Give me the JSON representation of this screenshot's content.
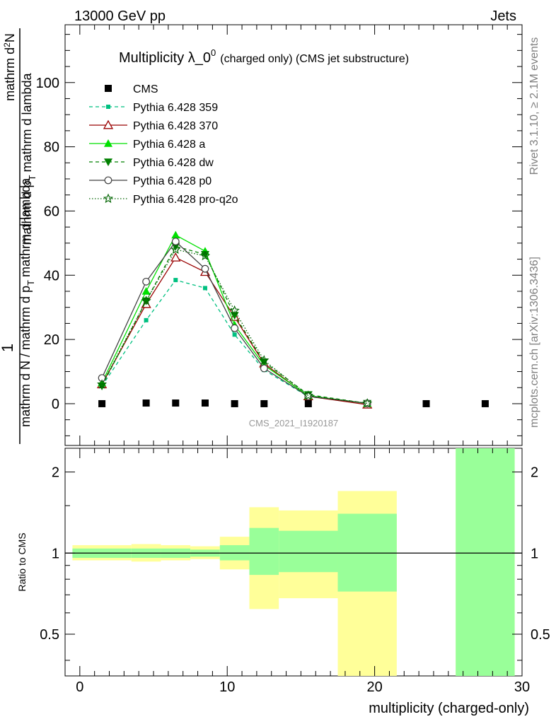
{
  "header": {
    "left": "13000 GeV pp",
    "right": "Jets"
  },
  "side_labels": {
    "rivet": "Rivet 3.1.10, ≥ 2.1M events",
    "mcplots": "mcplots.cern.ch [arXiv:1306.3436]"
  },
  "chart_data": [
    {
      "type": "line",
      "title_main": "Multiplicity λ_0",
      "title_sup": "0",
      "title_rest": "(charged only) (CMS jet substructure)",
      "analysis_label": "CMS_2021_I1920187",
      "ylabel": {
        "numer_1": "1",
        "denom_1": "mathrm d N / mathrm d p",
        "denom_sub": "T",
        "denom_2": "mathrm d lambda",
        "numer_2a": "mathrm d",
        "numer_2sup": "2",
        "numer_2b": "N",
        "denom2_a": "mathrm d p",
        "denom2_sub": "T",
        "denom2_b": "mathrm d lambda"
      },
      "xlim": [
        -1,
        30
      ],
      "ylim": [
        -13,
        118
      ],
      "x_ticks": [
        0,
        10,
        20,
        30
      ],
      "y_ticks": [
        0,
        20,
        40,
        60,
        80,
        100
      ],
      "legend_position": "top-left",
      "series": [
        {
          "name": "CMS",
          "color": "#000000",
          "marker": "square",
          "line": "none",
          "points": [
            [
              1.5,
              0
            ],
            [
              4.5,
              0.2
            ],
            [
              6.5,
              0.2
            ],
            [
              8.5,
              0.2
            ],
            [
              10.5,
              0
            ],
            [
              12.5,
              0
            ],
            [
              15.5,
              0
            ],
            [
              19.5,
              0
            ],
            [
              23.5,
              0
            ],
            [
              27.5,
              0
            ]
          ]
        },
        {
          "name": "Pythia 6.428 359",
          "color": "#00c080",
          "marker": "square-small",
          "line": "dashed",
          "points": [
            [
              1.5,
              5.5
            ],
            [
              4.5,
              26
            ],
            [
              6.5,
              38.5
            ],
            [
              8.5,
              36
            ],
            [
              10.5,
              21.5
            ],
            [
              12.5,
              10.5
            ],
            [
              15.5,
              2.2
            ],
            [
              19.5,
              0.1
            ]
          ]
        },
        {
          "name": "Pythia 6.428 370",
          "color": "#990000",
          "marker": "triangle-open",
          "line": "solid",
          "points": [
            [
              1.5,
              6
            ],
            [
              4.5,
              31
            ],
            [
              6.5,
              45.5
            ],
            [
              8.5,
              41
            ],
            [
              10.5,
              27
            ],
            [
              12.5,
              12.5
            ],
            [
              15.5,
              2.3
            ],
            [
              19.5,
              -0.3
            ]
          ]
        },
        {
          "name": "Pythia 6.428 a",
          "color": "#00e000",
          "marker": "triangle",
          "line": "solid",
          "points": [
            [
              1.5,
              6.5
            ],
            [
              4.5,
              35
            ],
            [
              6.5,
              52.5
            ],
            [
              8.5,
              47.5
            ],
            [
              10.5,
              24.5
            ],
            [
              12.5,
              12
            ],
            [
              15.5,
              2.5
            ],
            [
              19.5,
              0.1
            ]
          ]
        },
        {
          "name": "Pythia 6.428 dw",
          "color": "#008000",
          "marker": "triangle-down",
          "line": "dashed",
          "points": [
            [
              1.5,
              5.5
            ],
            [
              4.5,
              32
            ],
            [
              6.5,
              49
            ],
            [
              8.5,
              46.5
            ],
            [
              10.5,
              27.5
            ],
            [
              12.5,
              13
            ],
            [
              15.5,
              2.8
            ],
            [
              19.5,
              0.1
            ]
          ]
        },
        {
          "name": "Pythia 6.428 p0",
          "color": "#404040",
          "marker": "circle-open",
          "line": "solid",
          "points": [
            [
              1.5,
              8
            ],
            [
              4.5,
              38
            ],
            [
              6.5,
              50.5
            ],
            [
              8.5,
              42
            ],
            [
              10.5,
              23.5
            ],
            [
              12.5,
              11
            ],
            [
              15.5,
              2.3
            ],
            [
              19.5,
              0.1
            ]
          ]
        },
        {
          "name": "Pythia 6.428 pro-q2o",
          "color": "#006400",
          "marker": "star",
          "line": "dotted",
          "points": [
            [
              1.5,
              6
            ],
            [
              4.5,
              32
            ],
            [
              6.5,
              48
            ],
            [
              8.5,
              46
            ],
            [
              10.5,
              29
            ],
            [
              12.5,
              13.5
            ],
            [
              15.5,
              2.5
            ],
            [
              19.5,
              0.1
            ]
          ]
        }
      ]
    },
    {
      "type": "area",
      "ylabel": "Ratio to CMS",
      "xlabel": "multiplicity (charged-only)",
      "xlim": [
        -1,
        30
      ],
      "ylim": [
        0.35,
        2.45
      ],
      "log_y": true,
      "y_ticks": [
        0.5,
        1,
        2
      ],
      "x_ticks": [
        0,
        10,
        20,
        30
      ],
      "reference_line": 1,
      "bands": [
        {
          "x0": -0.5,
          "x1": 3.5,
          "yellow": [
            0.94,
            1.07
          ],
          "green": [
            0.96,
            1.04
          ]
        },
        {
          "x0": 3.5,
          "x1": 5.5,
          "yellow": [
            0.93,
            1.08
          ],
          "green": [
            0.96,
            1.04
          ]
        },
        {
          "x0": 5.5,
          "x1": 7.5,
          "yellow": [
            0.94,
            1.07
          ],
          "green": [
            0.96,
            1.04
          ]
        },
        {
          "x0": 7.5,
          "x1": 9.5,
          "yellow": [
            0.95,
            1.06
          ],
          "green": [
            0.97,
            1.03
          ]
        },
        {
          "x0": 9.5,
          "x1": 11.5,
          "yellow": [
            0.87,
            1.15
          ],
          "green": [
            0.94,
            1.07
          ]
        },
        {
          "x0": 11.5,
          "x1": 13.5,
          "yellow": [
            0.62,
            1.48
          ],
          "green": [
            0.83,
            1.24
          ]
        },
        {
          "x0": 13.5,
          "x1": 17.5,
          "yellow": [
            0.68,
            1.44
          ],
          "green": [
            0.85,
            1.21
          ]
        },
        {
          "x0": 17.5,
          "x1": 21.5,
          "yellow": [
            0.2,
            1.7
          ],
          "green": [
            0.72,
            1.4
          ]
        },
        {
          "x0": 25.5,
          "x1": 29.5,
          "yellow": [
            0.2,
            3.0
          ],
          "green": [
            0.2,
            3.0
          ]
        }
      ]
    }
  ]
}
